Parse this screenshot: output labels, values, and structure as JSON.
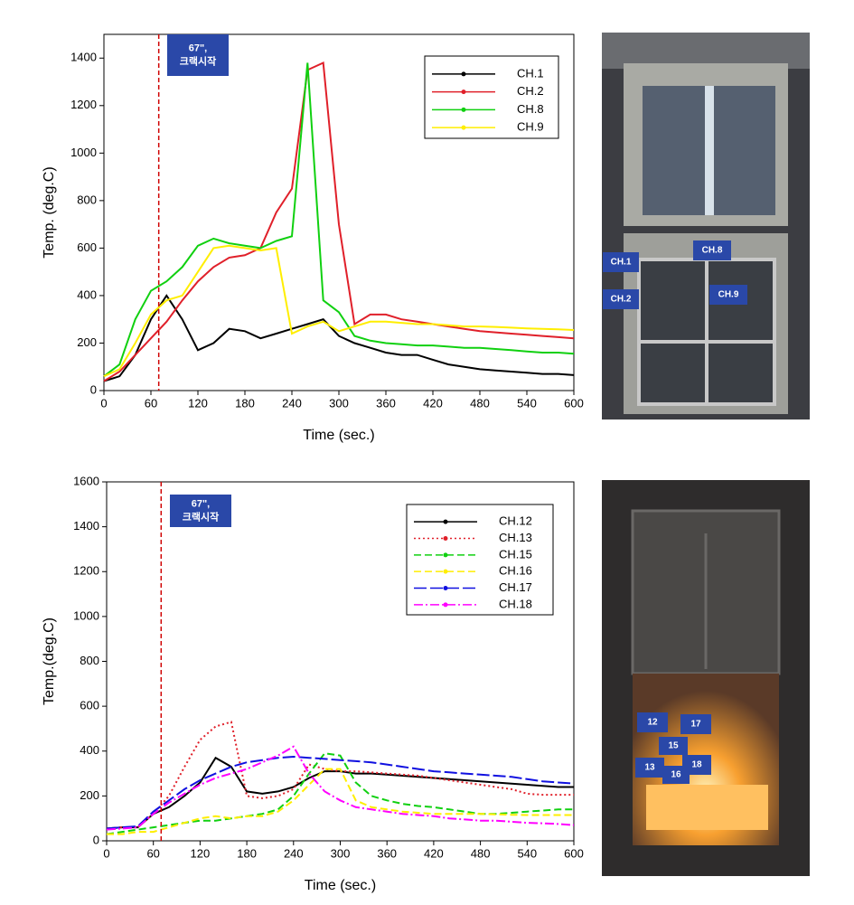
{
  "chart_data": [
    {
      "type": "line",
      "ylabel": "Temp. (deg.C)",
      "xlabel": "Time (sec.)",
      "annotation": [
        "67\",",
        "크랙시작"
      ],
      "vline": 70,
      "vline_color": "#d00000",
      "xlim": [
        0,
        600
      ],
      "xticks": [
        0,
        60,
        120,
        180,
        240,
        300,
        360,
        420,
        480,
        540,
        600
      ],
      "ylim": [
        0,
        1500
      ],
      "yticks": [
        0,
        200,
        400,
        600,
        800,
        1000,
        1200,
        1400
      ],
      "x": [
        0,
        20,
        40,
        60,
        80,
        100,
        120,
        140,
        160,
        180,
        200,
        220,
        240,
        260,
        280,
        300,
        320,
        340,
        360,
        380,
        400,
        420,
        440,
        460,
        480,
        500,
        520,
        540,
        560,
        580,
        600
      ],
      "series": [
        {
          "name": "CH.1",
          "color": "#000000",
          "dash": "none",
          "values": [
            40,
            60,
            150,
            300,
            400,
            300,
            170,
            200,
            260,
            250,
            220,
            240,
            260,
            280,
            300,
            230,
            200,
            180,
            160,
            150,
            150,
            130,
            110,
            100,
            90,
            85,
            80,
            75,
            70,
            70,
            65
          ]
        },
        {
          "name": "CH.2",
          "color": "#e0202a",
          "dash": "none",
          "values": [
            40,
            80,
            150,
            220,
            290,
            380,
            460,
            520,
            560,
            570,
            600,
            750,
            850,
            1350,
            1380,
            700,
            280,
            320,
            320,
            300,
            290,
            280,
            270,
            260,
            250,
            245,
            240,
            235,
            230,
            225,
            220
          ]
        },
        {
          "name": "CH.8",
          "color": "#10d010",
          "dash": "none",
          "values": [
            60,
            110,
            300,
            420,
            460,
            520,
            610,
            640,
            620,
            610,
            600,
            630,
            650,
            1380,
            380,
            330,
            230,
            210,
            200,
            195,
            190,
            190,
            185,
            180,
            180,
            175,
            170,
            165,
            160,
            160,
            155
          ]
        },
        {
          "name": "CH.9",
          "color": "#ffee00",
          "dash": "none",
          "values": [
            60,
            90,
            200,
            320,
            380,
            400,
            500,
            600,
            610,
            600,
            590,
            600,
            240,
            270,
            290,
            250,
            270,
            290,
            290,
            285,
            280,
            280,
            275,
            270,
            270,
            268,
            265,
            262,
            260,
            258,
            255
          ]
        }
      ]
    },
    {
      "type": "line",
      "ylabel": "Temp.(deg.C)",
      "xlabel": "Time (sec.)",
      "annotation": [
        "67\",",
        "크랙시작"
      ],
      "vline": 70,
      "vline_color": "#d00000",
      "xlim": [
        0,
        600
      ],
      "xticks": [
        0,
        60,
        120,
        180,
        240,
        300,
        360,
        420,
        480,
        540,
        600
      ],
      "ylim": [
        0,
        1600
      ],
      "yticks": [
        0,
        200,
        400,
        600,
        800,
        1000,
        1200,
        1400,
        1600
      ],
      "x": [
        0,
        20,
        40,
        60,
        80,
        100,
        120,
        140,
        160,
        180,
        200,
        220,
        240,
        260,
        280,
        300,
        320,
        340,
        360,
        380,
        400,
        420,
        440,
        460,
        480,
        500,
        520,
        540,
        560,
        580,
        600
      ],
      "series": [
        {
          "name": "CH.12",
          "color": "#000000",
          "dash": "none",
          "values": [
            55,
            60,
            60,
            120,
            150,
            200,
            260,
            370,
            330,
            220,
            210,
            220,
            240,
            280,
            310,
            310,
            300,
            300,
            295,
            290,
            285,
            280,
            275,
            270,
            265,
            260,
            255,
            250,
            245,
            240,
            240
          ]
        },
        {
          "name": "CH.13",
          "color": "#e0202a",
          "dash": "2 3",
          "values": [
            55,
            60,
            60,
            120,
            200,
            330,
            450,
            510,
            530,
            200,
            190,
            200,
            230,
            340,
            320,
            310,
            310,
            305,
            300,
            295,
            290,
            280,
            270,
            260,
            250,
            240,
            230,
            210,
            205,
            205,
            205
          ]
        },
        {
          "name": "CH.15",
          "color": "#10d010",
          "dash": "8 4",
          "values": [
            30,
            40,
            50,
            60,
            70,
            80,
            90,
            90,
            100,
            110,
            120,
            140,
            200,
            300,
            390,
            380,
            260,
            200,
            180,
            165,
            155,
            150,
            140,
            130,
            120,
            120,
            125,
            130,
            135,
            140,
            140
          ]
        },
        {
          "name": "CH.16",
          "color": "#ffee00",
          "dash": "8 4",
          "values": [
            30,
            30,
            40,
            40,
            60,
            80,
            100,
            110,
            100,
            110,
            110,
            130,
            180,
            250,
            320,
            320,
            180,
            150,
            140,
            130,
            125,
            120,
            120,
            120,
            120,
            118,
            116,
            115,
            115,
            115,
            115
          ]
        },
        {
          "name": "CH.17",
          "color": "#1010e0",
          "dash": "14 4",
          "values": [
            55,
            60,
            65,
            130,
            180,
            230,
            270,
            300,
            330,
            350,
            360,
            370,
            375,
            370,
            365,
            360,
            355,
            350,
            340,
            330,
            320,
            310,
            305,
            300,
            295,
            290,
            285,
            275,
            265,
            260,
            255
          ]
        },
        {
          "name": "CH.18",
          "color": "#ff00ff",
          "dash": "10 3 2 3",
          "values": [
            50,
            55,
            60,
            120,
            170,
            210,
            250,
            280,
            300,
            320,
            350,
            380,
            420,
            300,
            220,
            180,
            150,
            140,
            130,
            120,
            115,
            110,
            100,
            95,
            90,
            90,
            85,
            80,
            78,
            75,
            70
          ]
        }
      ]
    }
  ],
  "photo_1": {
    "labels": [
      "CH.1",
      "CH.2",
      "CH.8",
      "CH.9"
    ]
  },
  "photo_2": {
    "labels": [
      "12",
      "17",
      "15",
      "13",
      "16",
      "18"
    ]
  }
}
